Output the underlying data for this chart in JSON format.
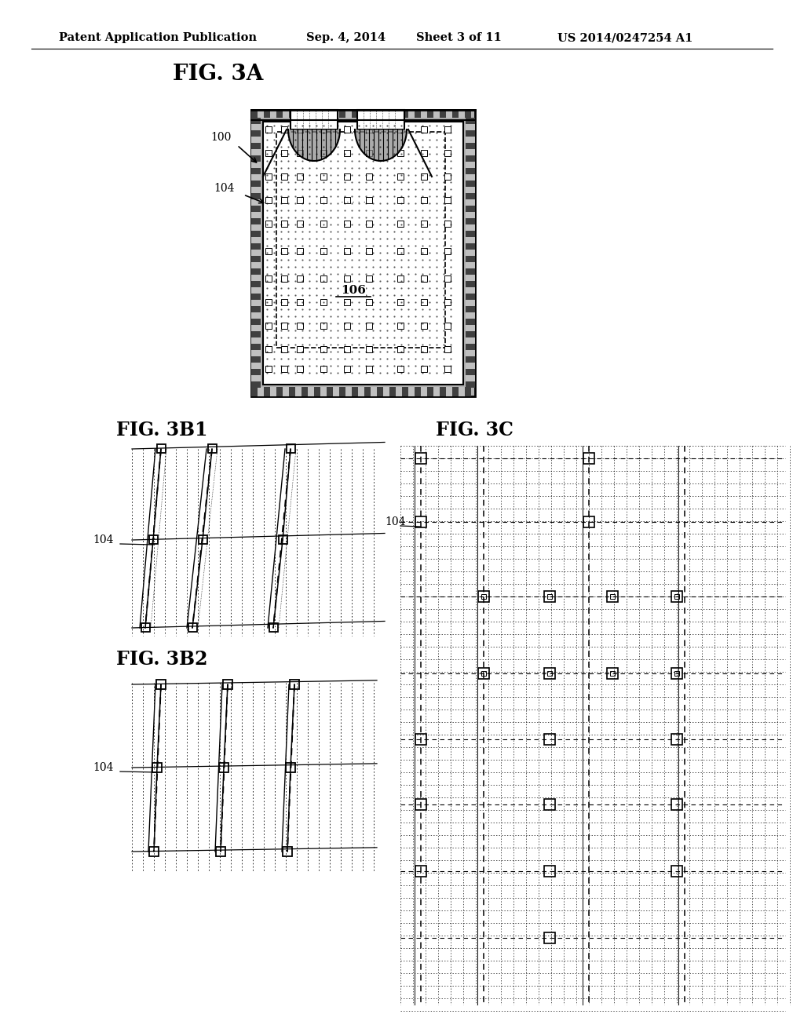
{
  "bg_color": "#ffffff",
  "header_text": "Patent Application Publication",
  "header_date": "Sep. 4, 2014",
  "header_sheet": "Sheet 3 of 11",
  "header_patent": "US 2014/0247254 A1",
  "fig3a_label": "FIG. 3A",
  "fig3b1_label": "FIG. 3B1",
  "fig3b2_label": "FIG. 3B2",
  "fig3c_label": "FIG. 3C",
  "label_100": "100",
  "label_104_3a": "104",
  "label_104_3b1": "104",
  "label_104_3b2": "104",
  "label_104_3c": "104",
  "label_106": "106"
}
